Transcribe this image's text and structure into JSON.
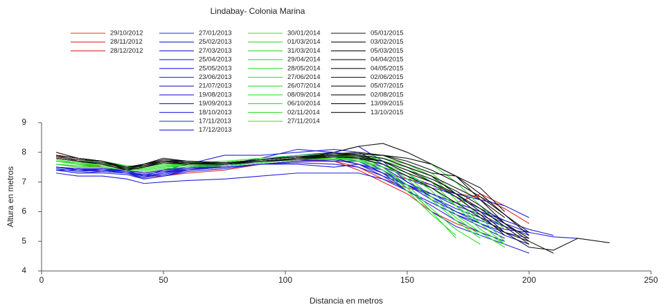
{
  "chart_data": {
    "type": "line",
    "title": "Lindabay- Colonia Marina",
    "x_label": "Distancia en metros",
    "y_label": "Altura en metros",
    "xlim": [
      0,
      250
    ],
    "xticks": [
      0,
      50,
      100,
      150,
      200,
      250
    ],
    "ylim": [
      4,
      9
    ],
    "yticks": [
      4,
      5,
      6,
      7,
      8,
      9
    ],
    "x": [
      6,
      15,
      25,
      35,
      42,
      50,
      60,
      75,
      90,
      105,
      120,
      130,
      140,
      150,
      160,
      170,
      180,
      190,
      200,
      210,
      220,
      233
    ],
    "series": [
      {
        "name": "29/10/2012",
        "color": "#e02828",
        "values": [
          7.9,
          7.7,
          7.5,
          7.4,
          7.2,
          7.2,
          7.3,
          7.4,
          7.6,
          7.7,
          7.8,
          7.6,
          7.3,
          7.1,
          6.9,
          6.6,
          6.5,
          6.1,
          5.6,
          null,
          null,
          null
        ]
      },
      {
        "name": "28/11/2012",
        "color": "#e02828",
        "values": [
          7.7,
          7.6,
          7.5,
          7.4,
          7.3,
          7.4,
          7.5,
          7.5,
          7.6,
          7.7,
          7.7,
          7.5,
          7.1,
          6.8,
          6.6,
          6.3,
          6.6,
          6.2,
          null,
          null,
          null,
          null
        ]
      },
      {
        "name": "28/12/2012",
        "color": "#e02828",
        "values": [
          7.6,
          7.5,
          7.5,
          7.4,
          7.3,
          7.4,
          7.5,
          7.5,
          7.6,
          7.7,
          7.7,
          7.4,
          7.0,
          6.6,
          6.0,
          5.6,
          5.3,
          5.0,
          null,
          null,
          null,
          null
        ]
      },
      {
        "name": "27/01/2013",
        "color": "#2020d8",
        "values": [
          7.5,
          7.4,
          7.4,
          7.3,
          7.2,
          7.3,
          7.5,
          7.6,
          7.7,
          7.8,
          7.8,
          7.7,
          7.3,
          6.9,
          6.6,
          6.3,
          6.0,
          5.6,
          5.3,
          null,
          null,
          null
        ]
      },
      {
        "name": "25/02/2013",
        "color": "#2020d8",
        "values": [
          7.4,
          7.3,
          7.35,
          7.3,
          7.15,
          7.3,
          7.4,
          7.5,
          7.6,
          7.7,
          7.75,
          7.6,
          7.2,
          6.7,
          6.2,
          5.7,
          5.3,
          5.0,
          null,
          null,
          null,
          null
        ]
      },
      {
        "name": "27/03/2013",
        "color": "#2020d8",
        "values": [
          7.3,
          7.2,
          7.2,
          7.1,
          6.95,
          7.0,
          7.05,
          7.1,
          7.2,
          7.3,
          7.3,
          7.3,
          7.1,
          6.7,
          6.3,
          5.9,
          5.5,
          5.1,
          null,
          null,
          null,
          null
        ]
      },
      {
        "name": "25/04/2013",
        "color": "#2020d8",
        "values": [
          7.5,
          7.45,
          7.4,
          7.4,
          7.2,
          7.4,
          7.6,
          7.9,
          7.9,
          8.0,
          8.1,
          8.0,
          7.6,
          7.1,
          6.8,
          6.6,
          6.4,
          6.2,
          5.8,
          null,
          null,
          null
        ]
      },
      {
        "name": "25/05/2013",
        "color": "#2020d8",
        "values": [
          7.5,
          7.4,
          7.4,
          7.3,
          7.1,
          7.2,
          7.4,
          7.6,
          7.8,
          8.1,
          8.0,
          8.2,
          7.7,
          7.0,
          6.5,
          6.0,
          5.7,
          5.4,
          5.3,
          5.15,
          5.1,
          null
        ]
      },
      {
        "name": "23/06/2013",
        "color": "#2020d8",
        "values": [
          7.4,
          7.4,
          7.35,
          7.3,
          7.25,
          7.35,
          7.4,
          7.5,
          7.6,
          7.6,
          7.5,
          7.6,
          7.4,
          6.8,
          6.0,
          5.5,
          5.2,
          4.9,
          4.6,
          null,
          null,
          null
        ]
      },
      {
        "name": "21/07/2013",
        "color": "#2020d8",
        "values": [
          7.5,
          7.4,
          7.4,
          7.35,
          7.2,
          7.3,
          7.45,
          7.55,
          7.7,
          7.75,
          7.7,
          7.7,
          7.5,
          7.2,
          6.9,
          6.5,
          6.1,
          5.7,
          null,
          null,
          null,
          null
        ]
      },
      {
        "name": "19/08/2013",
        "color": "#2020d8",
        "values": [
          7.45,
          7.35,
          7.4,
          7.3,
          7.15,
          7.25,
          7.4,
          7.55,
          7.65,
          7.8,
          7.9,
          7.8,
          7.4,
          6.9,
          6.4,
          6.0,
          5.6,
          5.3,
          5.1,
          null,
          null,
          null
        ]
      },
      {
        "name": "19/09/2013",
        "color": "#2020d8",
        "values": [
          7.5,
          7.4,
          7.45,
          7.35,
          7.25,
          7.35,
          7.5,
          7.6,
          7.7,
          7.8,
          7.85,
          7.7,
          7.3,
          6.7,
          6.3,
          5.9,
          5.6,
          5.2,
          4.9,
          null,
          null,
          null
        ]
      },
      {
        "name": "18/10/2013",
        "color": "#2020d8",
        "values": [
          7.4,
          7.3,
          7.3,
          7.25,
          7.1,
          7.2,
          7.35,
          7.45,
          7.6,
          7.65,
          7.6,
          7.5,
          7.2,
          6.9,
          6.6,
          6.2,
          5.9,
          5.5,
          null,
          null,
          null,
          null
        ]
      },
      {
        "name": "17/11/2013",
        "color": "#2020d8",
        "values": [
          7.5,
          7.4,
          7.4,
          7.35,
          7.2,
          7.3,
          7.45,
          7.6,
          7.75,
          7.9,
          8.0,
          7.9,
          7.5,
          7.0,
          6.6,
          6.3,
          6.0,
          5.7,
          5.4,
          5.2,
          null,
          null
        ]
      },
      {
        "name": "17/12/2013",
        "color": "#2020d8",
        "values": [
          7.5,
          7.45,
          7.45,
          7.4,
          7.3,
          7.4,
          7.5,
          7.6,
          7.7,
          7.8,
          7.8,
          7.6,
          7.3,
          6.9,
          6.5,
          6.1,
          5.8,
          5.5,
          5.2,
          null,
          null,
          null
        ]
      },
      {
        "name": "30/01/2014",
        "color": "#2ee02e",
        "values": [
          7.7,
          7.6,
          7.6,
          7.5,
          7.5,
          7.6,
          7.6,
          7.6,
          7.7,
          7.8,
          7.8,
          7.7,
          7.5,
          6.8,
          6.0,
          5.1,
          null,
          null,
          null,
          null,
          null,
          null
        ]
      },
      {
        "name": "01/03/2014",
        "color": "#2ee02e",
        "values": [
          7.8,
          7.7,
          7.65,
          7.5,
          7.45,
          7.55,
          7.6,
          7.65,
          7.75,
          7.85,
          7.9,
          7.8,
          7.6,
          7.1,
          6.4,
          5.7,
          5.1,
          null,
          null,
          null,
          null,
          null
        ]
      },
      {
        "name": "31/03/2014",
        "color": "#2ee02e",
        "values": [
          7.7,
          7.6,
          7.55,
          7.45,
          7.4,
          7.5,
          7.55,
          7.6,
          7.7,
          7.8,
          7.8,
          7.75,
          7.6,
          7.3,
          6.8,
          6.2,
          5.6,
          4.9,
          null,
          null,
          null,
          null
        ]
      },
      {
        "name": "29/04/2014",
        "color": "#2ee02e",
        "values": [
          7.6,
          7.5,
          7.5,
          7.4,
          7.35,
          7.45,
          7.5,
          7.55,
          7.65,
          7.75,
          7.8,
          7.7,
          7.4,
          6.7,
          5.9,
          5.2,
          null,
          null,
          null,
          null,
          null,
          null
        ]
      },
      {
        "name": "28/05/2014",
        "color": "#2ee02e",
        "values": [
          7.8,
          7.7,
          7.7,
          7.55,
          7.5,
          7.6,
          7.65,
          7.7,
          7.8,
          7.9,
          7.95,
          7.9,
          7.8,
          7.6,
          7.3,
          6.6,
          5.8,
          5.0,
          null,
          null,
          null,
          null
        ]
      },
      {
        "name": "27/06/2014",
        "color": "#2ee02e",
        "values": [
          7.7,
          7.6,
          7.6,
          7.5,
          7.4,
          7.5,
          7.6,
          7.65,
          7.7,
          7.8,
          7.85,
          7.8,
          7.7,
          7.5,
          7.0,
          6.2,
          5.4,
          4.9,
          null,
          null,
          null,
          null
        ]
      },
      {
        "name": "26/07/2014",
        "color": "#2ee02e",
        "values": [
          7.75,
          7.65,
          7.6,
          7.5,
          7.45,
          7.55,
          7.6,
          7.6,
          7.7,
          7.8,
          7.85,
          7.8,
          7.6,
          7.2,
          6.5,
          5.8,
          5.2,
          null,
          null,
          null,
          null,
          null
        ]
      },
      {
        "name": "08/09/2014",
        "color": "#2ee02e",
        "values": [
          7.7,
          7.65,
          7.6,
          7.5,
          7.4,
          7.5,
          7.55,
          7.6,
          7.7,
          7.8,
          7.85,
          7.85,
          7.9,
          7.8,
          7.6,
          7.0,
          6.2,
          5.4,
          null,
          null,
          null,
          null
        ]
      },
      {
        "name": "06/10/2014",
        "color": "#2ee02e",
        "values": [
          7.6,
          7.55,
          7.5,
          7.4,
          7.35,
          7.45,
          7.5,
          7.55,
          7.65,
          7.75,
          7.8,
          7.75,
          7.5,
          6.9,
          6.1,
          5.4,
          4.9,
          null,
          null,
          null,
          null,
          null
        ]
      },
      {
        "name": "02/11/2014",
        "color": "#2ee02e",
        "values": [
          7.8,
          7.7,
          7.65,
          7.5,
          7.45,
          7.55,
          7.6,
          7.65,
          7.75,
          7.85,
          7.9,
          7.85,
          7.7,
          7.3,
          6.7,
          5.9,
          5.3,
          4.8,
          null,
          null,
          null,
          null
        ]
      },
      {
        "name": "27/11/2014",
        "color": "#2ee02e",
        "values": [
          7.7,
          7.6,
          7.55,
          7.45,
          7.4,
          7.5,
          7.55,
          7.6,
          7.7,
          7.75,
          7.8,
          7.8,
          7.8,
          7.6,
          7.2,
          6.4,
          5.6,
          null,
          null,
          null,
          null,
          null
        ]
      },
      {
        "name": "05/01/2015",
        "color": "#111111",
        "values": [
          8.0,
          7.8,
          7.7,
          7.4,
          7.6,
          7.8,
          7.7,
          7.6,
          7.7,
          7.8,
          8.0,
          8.2,
          8.3,
          8.0,
          7.6,
          7.2,
          6.4,
          5.6,
          5.0,
          4.6,
          null,
          null
        ]
      },
      {
        "name": "03/02/2015",
        "color": "#111111",
        "values": [
          7.8,
          7.7,
          7.6,
          7.4,
          7.5,
          7.7,
          7.6,
          7.6,
          7.7,
          7.8,
          7.9,
          7.9,
          7.8,
          7.5,
          7.2,
          6.6,
          6.0,
          5.3,
          4.8,
          4.7,
          5.1,
          4.95
        ]
      },
      {
        "name": "05/03/2015",
        "color": "#111111",
        "values": [
          7.9,
          7.8,
          7.7,
          7.5,
          7.6,
          7.75,
          7.7,
          7.65,
          7.75,
          7.85,
          7.95,
          8.0,
          7.9,
          7.6,
          7.3,
          7.2,
          6.8,
          6.0,
          null,
          null,
          null,
          null
        ]
      },
      {
        "name": "04/04/2015",
        "color": "#111111",
        "values": [
          7.85,
          7.75,
          7.7,
          7.45,
          7.55,
          7.7,
          7.65,
          7.6,
          7.7,
          7.8,
          7.9,
          7.9,
          7.7,
          7.3,
          7.0,
          6.5,
          5.9,
          5.2,
          null,
          null,
          null,
          null
        ]
      },
      {
        "name": "04/05/2015",
        "color": "#111111",
        "values": [
          7.8,
          7.7,
          7.6,
          7.4,
          7.5,
          7.65,
          7.6,
          7.6,
          7.7,
          7.75,
          7.85,
          7.8,
          7.6,
          7.2,
          6.8,
          6.3,
          5.8,
          5.3,
          5.0,
          null,
          null,
          null
        ]
      },
      {
        "name": "02/06/2015",
        "color": "#111111",
        "values": [
          7.9,
          7.8,
          7.7,
          7.5,
          7.6,
          7.7,
          7.7,
          7.65,
          7.75,
          7.85,
          7.9,
          7.95,
          7.9,
          7.8,
          7.6,
          7.2,
          6.6,
          5.9,
          5.2,
          null,
          null,
          null
        ]
      },
      {
        "name": "05/07/2015",
        "color": "#111111",
        "values": [
          7.8,
          7.7,
          7.65,
          7.45,
          7.55,
          7.7,
          7.65,
          7.6,
          7.7,
          7.8,
          7.85,
          7.85,
          7.7,
          7.4,
          7.1,
          6.7,
          6.2,
          5.6,
          5.1,
          null,
          null,
          null
        ]
      },
      {
        "name": "02/08/2015",
        "color": "#111111",
        "values": [
          7.85,
          7.75,
          7.7,
          7.5,
          7.55,
          7.7,
          7.65,
          7.6,
          7.75,
          7.85,
          7.9,
          7.9,
          7.8,
          7.5,
          7.2,
          6.8,
          6.4,
          5.8,
          null,
          null,
          null,
          null
        ]
      },
      {
        "name": "13/09/2015",
        "color": "#111111",
        "values": [
          7.8,
          7.7,
          7.6,
          7.4,
          7.5,
          7.65,
          7.6,
          7.6,
          7.7,
          7.8,
          7.85,
          7.8,
          7.7,
          7.4,
          7.0,
          6.6,
          6.1,
          5.5,
          4.9,
          null,
          null,
          null
        ]
      },
      {
        "name": "13/10/2015",
        "color": "#111111",
        "values": [
          7.9,
          7.8,
          7.7,
          7.5,
          7.6,
          7.75,
          7.7,
          7.65,
          7.75,
          7.85,
          7.95,
          7.95,
          7.9,
          7.7,
          7.4,
          7.0,
          6.5,
          5.9,
          5.3,
          null,
          null,
          null
        ]
      }
    ]
  }
}
